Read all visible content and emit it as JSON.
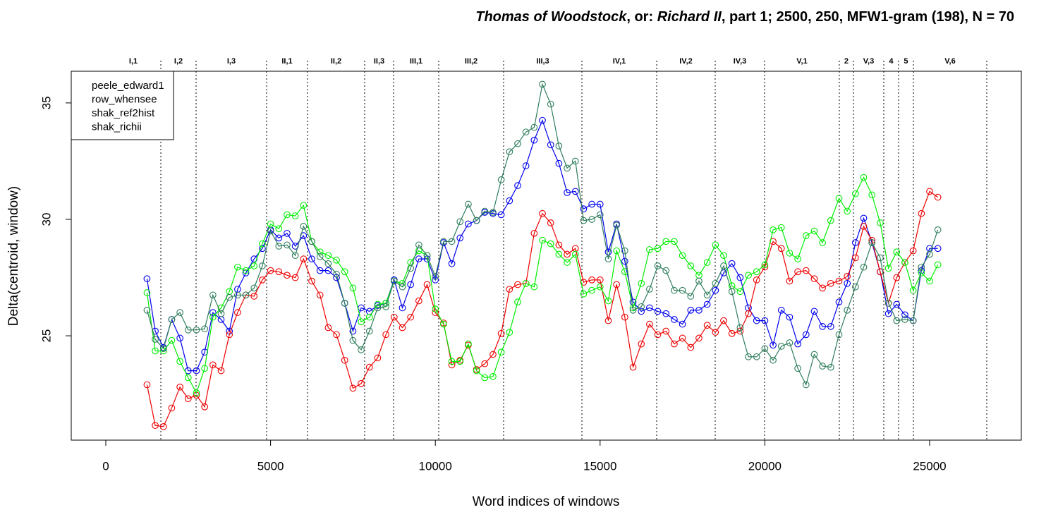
{
  "chart_data": {
    "type": "line",
    "title_parts": [
      "Thomas of Woodstock",
      ", or: ",
      "Richard II",
      ", part 1; 2500, 250, MFW1-gram (198), N = 70"
    ],
    "title_italic": [
      true,
      false,
      true,
      false
    ],
    "xlabel": "Word indices of windows",
    "ylabel": "Delta(centroid, window)",
    "xlim": [
      -1049,
      27783
    ],
    "ylim": [
      20.52,
      36.36
    ],
    "xticks": [
      0,
      5000,
      10000,
      15000,
      20000,
      25000
    ],
    "yticks": [
      25,
      30,
      35
    ],
    "legend": "upper left",
    "scenes": [
      {
        "label": "I,1",
        "end": 1670
      },
      {
        "label": "I,2",
        "end": 2740
      },
      {
        "label": "I,3",
        "end": 4880
      },
      {
        "label": "II,1",
        "end": 6122
      },
      {
        "label": "II,2",
        "end": 7855
      },
      {
        "label": "II,3",
        "end": 8733
      },
      {
        "label": "III,1",
        "end": 10103
      },
      {
        "label": "III,2",
        "end": 12072
      },
      {
        "label": "III,3",
        "end": 14448
      },
      {
        "label": "IV,1",
        "end": 16717
      },
      {
        "label": "IV,2",
        "end": 18493
      },
      {
        "label": "IV,3",
        "end": 19991
      },
      {
        "label": "V,1",
        "end": 22260
      },
      {
        "label": "2",
        "end": 22688
      },
      {
        "label": "V,3",
        "end": 23609
      },
      {
        "label": "4",
        "end": 24058
      },
      {
        "label": "5",
        "end": 24508
      },
      {
        "label": "V,6",
        "end": 26734
      }
    ],
    "x": [
      1250,
      1500,
      1750,
      2000,
      2250,
      2500,
      2750,
      3000,
      3250,
      3500,
      3750,
      4000,
      4250,
      4500,
      4750,
      5000,
      5250,
      5500,
      5750,
      6000,
      6250,
      6500,
      6750,
      7000,
      7250,
      7500,
      7750,
      8000,
      8250,
      8500,
      8750,
      9000,
      9250,
      9500,
      9750,
      10000,
      10250,
      10500,
      10750,
      11000,
      11250,
      11500,
      11750,
      12000,
      12250,
      12500,
      12750,
      13000,
      13250,
      13500,
      13750,
      14000,
      14250,
      14500,
      14750,
      15000,
      15250,
      15500,
      15750,
      16000,
      16250,
      16500,
      16750,
      17000,
      17250,
      17500,
      17750,
      18000,
      18250,
      18500,
      18750,
      19000,
      19250,
      19500,
      19750,
      20000,
      20250,
      20500,
      20750,
      21000,
      21250,
      21500,
      21750,
      22000,
      22250,
      22500,
      22750,
      23000,
      23250,
      23500,
      23750,
      24000,
      24250,
      24500,
      24750,
      25000,
      25250
    ],
    "series": [
      {
        "name": "peele_edward1",
        "color": "#0000ee",
        "values": [
          27.45,
          25.2,
          24.5,
          25.7,
          24.9,
          23.5,
          23.5,
          24.3,
          26.0,
          25.7,
          25.2,
          27.0,
          27.7,
          28.3,
          28.75,
          29.55,
          29.2,
          29.4,
          28.85,
          29.3,
          28.3,
          27.8,
          27.8,
          27.5,
          26.4,
          25.2,
          26.2,
          26.05,
          26.3,
          26.4,
          27.4,
          26.2,
          27.2,
          28.3,
          28.3,
          27.4,
          29.0,
          28.1,
          29.2,
          29.8,
          29.95,
          30.3,
          30.25,
          30.2,
          30.8,
          31.45,
          32.3,
          33.4,
          34.25,
          33.2,
          32.4,
          31.15,
          31.2,
          30.45,
          30.65,
          30.65,
          28.6,
          29.8,
          28.2,
          26.45,
          26.05,
          26.2,
          26.05,
          25.95,
          25.7,
          25.5,
          26.1,
          26.1,
          26.35,
          26.95,
          27.7,
          28.1,
          27.5,
          26.2,
          25.65,
          25.65,
          24.6,
          26.1,
          25.8,
          24.65,
          25.05,
          26.05,
          25.4,
          25.4,
          26.45,
          27.25,
          29.0,
          30.05,
          29.0,
          27.75,
          25.95,
          26.35,
          25.9,
          25.65,
          27.8,
          28.75,
          28.75
        ]
      },
      {
        "name": "row_whensee",
        "color": "#ee0000",
        "values": [
          22.9,
          21.15,
          21.1,
          21.9,
          22.8,
          22.3,
          22.45,
          21.95,
          23.75,
          23.5,
          25.05,
          26.0,
          26.75,
          26.7,
          27.4,
          27.8,
          27.75,
          27.6,
          27.5,
          28.3,
          27.35,
          26.75,
          25.35,
          25.05,
          23.95,
          22.75,
          22.95,
          23.65,
          24.05,
          25.05,
          25.8,
          25.35,
          25.8,
          26.5,
          27.2,
          26.0,
          25.55,
          23.75,
          23.95,
          24.6,
          23.55,
          23.8,
          24.2,
          25.1,
          27.0,
          27.2,
          27.25,
          29.4,
          30.25,
          29.85,
          28.9,
          28.5,
          28.75,
          27.3,
          27.4,
          27.4,
          25.65,
          27.2,
          25.8,
          23.65,
          24.65,
          25.5,
          25.05,
          25.2,
          24.65,
          24.9,
          24.5,
          24.9,
          25.45,
          25.15,
          25.65,
          25.1,
          25.2,
          25.95,
          27.4,
          27.95,
          29.05,
          28.75,
          27.35,
          27.75,
          27.8,
          27.45,
          27.05,
          27.25,
          27.35,
          27.55,
          28.35,
          29.7,
          29.1,
          27.75,
          26.4,
          27.5,
          28.15,
          28.65,
          30.25,
          31.2,
          30.95
        ]
      },
      {
        "name": "shak_ref2hist",
        "color": "#00ee00",
        "values": [
          26.85,
          24.35,
          24.35,
          24.8,
          23.9,
          23.2,
          22.55,
          23.6,
          25.8,
          26.2,
          26.9,
          27.95,
          27.8,
          28.0,
          28.95,
          29.8,
          29.6,
          30.2,
          30.15,
          30.6,
          29.05,
          28.6,
          28.45,
          28.25,
          27.75,
          27.05,
          25.6,
          25.8,
          26.35,
          26.4,
          27.35,
          27.25,
          28.15,
          28.65,
          28.45,
          26.15,
          25.5,
          23.9,
          23.9,
          24.65,
          23.5,
          23.2,
          23.25,
          24.3,
          25.15,
          26.45,
          27.25,
          27.1,
          29.1,
          28.95,
          28.5,
          28.15,
          28.5,
          26.8,
          26.95,
          27.1,
          26.5,
          28.65,
          27.75,
          26.2,
          27.25,
          28.7,
          28.75,
          29.05,
          29.05,
          28.45,
          28.0,
          27.6,
          28.15,
          28.9,
          28.45,
          27.15,
          26.9,
          27.6,
          27.75,
          28.05,
          29.55,
          29.65,
          28.55,
          28.3,
          29.3,
          29.5,
          29.0,
          29.95,
          30.9,
          30.35,
          31.1,
          31.8,
          31.05,
          29.85,
          27.9,
          28.6,
          28.15,
          26.95,
          27.7,
          27.35,
          28.05
        ]
      },
      {
        "name": "shak_richii",
        "color": "#2e7d5b",
        "values": [
          26.1,
          24.85,
          24.45,
          25.7,
          26.0,
          25.25,
          25.25,
          25.3,
          26.75,
          25.95,
          26.65,
          26.75,
          26.75,
          27.05,
          28.0,
          29.5,
          28.85,
          28.9,
          28.45,
          29.7,
          29.05,
          28.4,
          28.1,
          27.65,
          26.4,
          24.8,
          24.4,
          25.2,
          26.2,
          26.25,
          27.35,
          27.1,
          27.9,
          28.9,
          28.45,
          27.55,
          29.05,
          29.05,
          29.9,
          30.65,
          29.95,
          30.35,
          30.3,
          31.7,
          32.9,
          33.25,
          33.75,
          33.95,
          35.8,
          34.95,
          33.15,
          32.2,
          32.5,
          29.95,
          30.0,
          30.2,
          28.3,
          29.75,
          28.65,
          26.1,
          26.25,
          27.0,
          28.0,
          27.8,
          26.95,
          26.95,
          26.7,
          27.35,
          26.75,
          27.25,
          28.0,
          26.9,
          25.35,
          24.1,
          24.1,
          24.45,
          23.95,
          24.55,
          24.7,
          23.6,
          22.9,
          24.2,
          23.7,
          23.65,
          25.05,
          26.1,
          27.1,
          27.95,
          29.0,
          28.35,
          26.4,
          25.65,
          25.7,
          25.65,
          27.95,
          28.5,
          29.55
        ]
      }
    ]
  }
}
